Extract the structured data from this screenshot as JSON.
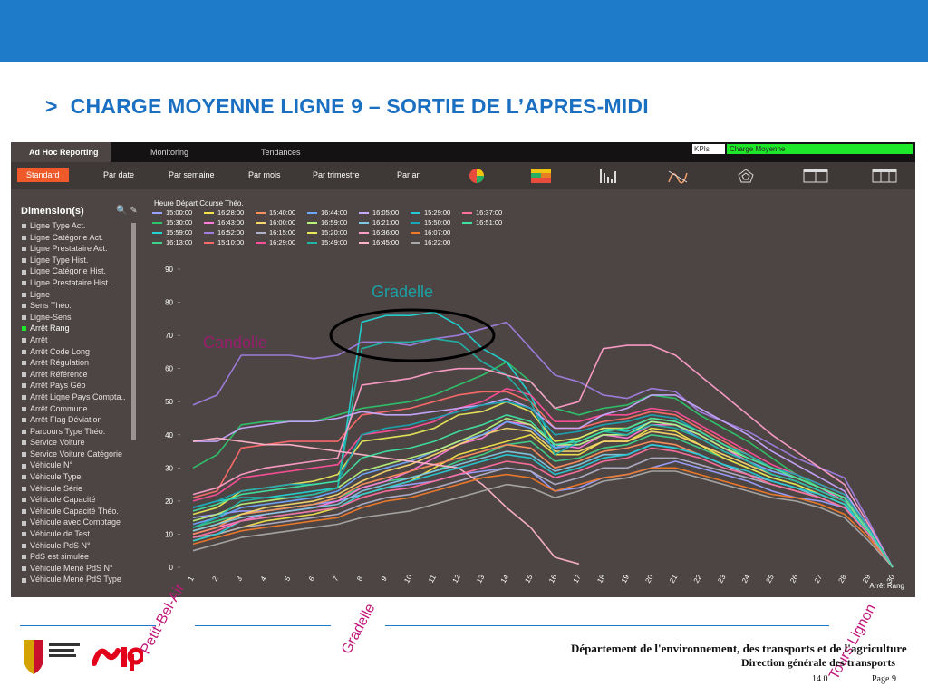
{
  "slide": {
    "title_arrow": ">",
    "title": "CHARGE MOYENNE LIGNE 9 – SORTIE DE L’APRES-MIDI",
    "footer_department": "Département de l'environnement, des transports et de l'agriculture",
    "footer_direction": "Direction générale des transports",
    "footer_date": "14.0",
    "footer_page": "Page 9",
    "colors": {
      "topbar": "#1e7bc9",
      "title": "#1a6fc1"
    }
  },
  "app": {
    "tabs": [
      "Ad Hoc Reporting",
      "Monitoring",
      "Tendances"
    ],
    "kpi_label": "KPIs",
    "kpi_value": "Charge Moyenne",
    "subtabs": [
      "Standard",
      "Par date",
      "Par semaine",
      "Par mois",
      "Par trimestre",
      "Par an"
    ],
    "tool_icons": [
      "pie-chart-icon",
      "heatmap-icon",
      "bar-chart-icon",
      "line-chart-icon",
      "radar-icon",
      "table-icon",
      "table-icon",
      "table-icon"
    ],
    "sidebar_title": "Dimension(s)",
    "sidebar_tools": "🔍 ✎",
    "dimensions": [
      "Ligne Type Act.",
      "Ligne Catégorie Act.",
      "Ligne Prestataire Act.",
      "Ligne Type Hist.",
      "Ligne Catégorie Hist.",
      "Ligne Prestataire Hist.",
      "Ligne",
      "Sens Théo.",
      "Ligne-Sens",
      "Arrêt Rang",
      "Arrêt",
      "Arrêt Code Long",
      "Arrêt Régulation",
      "Arrêt Référence",
      "Arrêt Pays Géo",
      "Arrêt Ligne Pays Compta..",
      "Arrêt Commune",
      "Arrêt Flag Déviation",
      "Parcours Type Théo.",
      "Service Voiture",
      "Service Voiture Catégorie",
      "Véhicule N°",
      "Véhicule Type",
      "Véhicule Série",
      "Véhicule Capacité",
      "Véhicule Capacité Théo.",
      "Véhicule avec Comptage",
      "Véhicule de Test",
      "Véhicule PdS N°",
      "PdS est simulée",
      "Véhicule Mené PdS N°",
      "Véhicule Mené PdS Type"
    ],
    "selected_dimension": "Arrêt Rang"
  },
  "chart_data": {
    "type": "line",
    "legend_title": "Heure Départ Course Théo.",
    "xlabel": "Arrêt Rang",
    "ylabel": "",
    "ylim": [
      0,
      90
    ],
    "yticks": [
      0,
      10,
      20,
      30,
      40,
      50,
      60,
      70,
      80,
      90
    ],
    "x": [
      1,
      2,
      3,
      4,
      5,
      6,
      7,
      8,
      9,
      10,
      11,
      12,
      13,
      14,
      15,
      16,
      17,
      18,
      19,
      20,
      21,
      22,
      23,
      24,
      25,
      26,
      27,
      28,
      29,
      30
    ],
    "grid": false,
    "legend_position": "top-left",
    "series": [
      {
        "name": "15:00:00",
        "color": "#9aa0ff",
        "values": [
          15,
          16,
          17,
          17,
          18,
          19,
          20,
          22,
          24,
          25,
          26,
          28,
          29,
          30,
          29,
          23,
          24,
          27,
          28,
          30,
          32,
          30,
          28,
          26,
          23,
          21,
          20,
          18,
          12,
          0
        ]
      },
      {
        "name": "15:30:00",
        "color": "#2ec46c",
        "values": [
          30,
          34,
          43,
          44,
          44,
          44,
          46,
          48,
          49,
          50,
          52,
          55,
          58,
          62,
          56,
          48,
          46,
          48,
          49,
          52,
          51,
          46,
          42,
          38,
          33,
          28,
          24,
          21,
          10,
          0
        ]
      },
      {
        "name": "15:59:00",
        "color": "#22d3d3",
        "values": [
          18,
          20,
          21,
          21,
          22,
          23,
          24,
          74,
          76,
          76,
          77,
          73,
          66,
          62,
          52,
          36,
          39,
          42,
          41,
          44,
          43,
          40,
          36,
          32,
          28,
          26,
          23,
          20,
          10,
          0
        ]
      },
      {
        "name": "16:13:00",
        "color": "#3fd18a",
        "values": [
          12,
          14,
          16,
          17,
          18,
          19,
          21,
          24,
          26,
          27,
          29,
          32,
          34,
          37,
          38,
          32,
          33,
          36,
          37,
          40,
          39,
          36,
          33,
          30,
          27,
          25,
          22,
          19,
          11,
          0
        ]
      },
      {
        "name": "16:28:00",
        "color": "#f1e24a",
        "values": [
          8,
          10,
          12,
          14,
          15,
          16,
          18,
          22,
          24,
          26,
          30,
          34,
          36,
          38,
          40,
          34,
          34,
          38,
          38,
          42,
          41,
          37,
          33,
          30,
          27,
          25,
          22,
          19,
          11,
          0
        ]
      },
      {
        "name": "16:43:00",
        "color": "#ff7ad9",
        "values": [
          10,
          12,
          14,
          16,
          17,
          18,
          20,
          24,
          26,
          29,
          33,
          37,
          39,
          44,
          43,
          37,
          36,
          40,
          39,
          43,
          43,
          40,
          36,
          32,
          29,
          27,
          24,
          20,
          11,
          0
        ]
      },
      {
        "name": "16:52:00",
        "color": "#a07ee0",
        "values": [
          49,
          52,
          64,
          64,
          64,
          63,
          64,
          68,
          68,
          67,
          69,
          70,
          72,
          74,
          66,
          58,
          56,
          52,
          51,
          54,
          53,
          47,
          44,
          41,
          37,
          33,
          30,
          27,
          14,
          0
        ]
      },
      {
        "name": "15:10:00",
        "color": "#ff6b6b",
        "values": [
          21,
          23,
          36,
          37,
          38,
          38,
          38,
          46,
          47,
          48,
          50,
          52,
          53,
          53,
          50,
          42,
          42,
          44,
          45,
          47,
          46,
          42,
          38,
          34,
          30,
          28,
          25,
          22,
          12,
          0
        ]
      },
      {
        "name": "15:40:00",
        "color": "#ff8f5e",
        "values": [
          10,
          12,
          16,
          17,
          18,
          19,
          21,
          25,
          27,
          29,
          31,
          33,
          35,
          37,
          36,
          30,
          32,
          35,
          36,
          38,
          37,
          34,
          31,
          28,
          25,
          23,
          21,
          18,
          10,
          0
        ]
      },
      {
        "name": "16:00:00",
        "color": "#f5d76e",
        "values": [
          11,
          13,
          16,
          18,
          19,
          20,
          22,
          26,
          29,
          31,
          34,
          37,
          40,
          42,
          41,
          35,
          35,
          38,
          38,
          41,
          40,
          37,
          34,
          31,
          28,
          26,
          23,
          20,
          11,
          0
        ]
      },
      {
        "name": "16:15:00",
        "color": "#b0b0c8",
        "values": [
          9,
          10,
          12,
          13,
          14,
          15,
          16,
          19,
          21,
          22,
          24,
          26,
          28,
          30,
          29,
          25,
          27,
          30,
          30,
          33,
          33,
          31,
          29,
          27,
          25,
          23,
          21,
          18,
          10,
          0
        ]
      },
      {
        "name": "16:29:00",
        "color": "#ff4f9a",
        "values": [
          20,
          22,
          27,
          28,
          29,
          30,
          31,
          40,
          41,
          42,
          44,
          48,
          50,
          54,
          52,
          44,
          44,
          46,
          46,
          48,
          47,
          43,
          39,
          35,
          31,
          28,
          25,
          22,
          12,
          0
        ]
      },
      {
        "name": "16:44:00",
        "color": "#6fa8ff",
        "values": [
          13,
          15,
          18,
          19,
          20,
          21,
          23,
          28,
          30,
          32,
          35,
          38,
          40,
          44,
          42,
          36,
          37,
          40,
          40,
          44,
          43,
          39,
          35,
          32,
          29,
          27,
          24,
          21,
          11,
          0
        ]
      },
      {
        "name": "16:59:00",
        "color": "#b9f27a",
        "values": [
          14,
          16,
          19,
          20,
          21,
          22,
          24,
          29,
          31,
          33,
          35,
          38,
          41,
          45,
          43,
          37,
          37,
          40,
          40,
          44,
          43,
          40,
          36,
          33,
          30,
          27,
          24,
          21,
          11,
          0
        ]
      },
      {
        "name": "15:20:00",
        "color": "#e8e85a",
        "values": [
          16,
          18,
          23,
          24,
          25,
          26,
          28,
          38,
          39,
          40,
          42,
          46,
          47,
          50,
          47,
          38,
          39,
          42,
          42,
          45,
          44,
          41,
          37,
          34,
          30,
          27,
          24,
          21,
          11,
          0
        ]
      },
      {
        "name": "15:49:00",
        "color": "#1fb5a8",
        "values": [
          12,
          15,
          20,
          21,
          21,
          22,
          24,
          66,
          68,
          68,
          69,
          68,
          62,
          58,
          50,
          34,
          38,
          41,
          40,
          43,
          42,
          39,
          35,
          32,
          28,
          26,
          23,
          20,
          10,
          0
        ]
      },
      {
        "name": "16:05:00",
        "color": "#c7a8ff",
        "values": [
          38,
          38,
          42,
          43,
          44,
          44,
          45,
          47,
          46,
          46,
          47,
          48,
          49,
          51,
          48,
          42,
          42,
          46,
          48,
          52,
          52,
          48,
          44,
          40,
          35,
          31,
          27,
          23,
          12,
          0
        ]
      },
      {
        "name": "16:21:00",
        "color": "#7ec8e3",
        "values": [
          11,
          13,
          15,
          16,
          17,
          18,
          19,
          23,
          25,
          27,
          29,
          31,
          33,
          35,
          34,
          29,
          31,
          34,
          34,
          37,
          36,
          34,
          31,
          28,
          26,
          24,
          21,
          18,
          10,
          0
        ]
      },
      {
        "name": "16:36:00",
        "color": "#ff9ec9",
        "values": [
          22,
          24,
          28,
          30,
          31,
          32,
          33,
          55,
          56,
          57,
          59,
          60,
          60,
          58,
          56,
          48,
          50,
          66,
          67,
          67,
          64,
          58,
          52,
          46,
          40,
          35,
          30,
          25,
          13,
          0
        ]
      },
      {
        "name": "16:45:00",
        "color": "#ffb3c8",
        "values": [
          38,
          39,
          38,
          37,
          37,
          36,
          35,
          34,
          33,
          32,
          31,
          30,
          25,
          18,
          12,
          3,
          1,
          null,
          null,
          null,
          null,
          null,
          null,
          null,
          null,
          null,
          null,
          null,
          null,
          null
        ]
      },
      {
        "name": "15:29:00",
        "color": "#25c9d6",
        "values": [
          8,
          10,
          14,
          15,
          16,
          17,
          18,
          22,
          24,
          26,
          28,
          30,
          32,
          34,
          33,
          28,
          30,
          33,
          34,
          37,
          36,
          34,
          31,
          29,
          26,
          24,
          22,
          19,
          10,
          0
        ]
      },
      {
        "name": "15:50:00",
        "color": "#19a6b5",
        "values": [
          18,
          20,
          23,
          24,
          25,
          25,
          26,
          40,
          42,
          43,
          45,
          47,
          49,
          50,
          48,
          40,
          41,
          43,
          44,
          46,
          45,
          41,
          37,
          34,
          30,
          28,
          25,
          22,
          12,
          0
        ]
      },
      {
        "name": "16:07:00",
        "color": "#f07a2a",
        "values": [
          7,
          9,
          11,
          12,
          13,
          14,
          15,
          18,
          20,
          21,
          23,
          25,
          27,
          28,
          27,
          23,
          25,
          27,
          28,
          30,
          30,
          28,
          26,
          24,
          22,
          21,
          19,
          16,
          9,
          0
        ]
      },
      {
        "name": "16:22:00",
        "color": "#a9a9a9",
        "values": [
          5,
          7,
          9,
          10,
          11,
          12,
          13,
          15,
          16,
          17,
          19,
          21,
          23,
          25,
          24,
          21,
          23,
          26,
          27,
          29,
          29,
          27,
          25,
          23,
          21,
          20,
          18,
          15,
          8,
          0
        ]
      },
      {
        "name": "16:37:00",
        "color": "#ff6fa0",
        "values": [
          9,
          11,
          14,
          15,
          16,
          17,
          18,
          21,
          23,
          24,
          26,
          28,
          30,
          32,
          31,
          27,
          29,
          32,
          33,
          36,
          35,
          33,
          30,
          28,
          25,
          23,
          21,
          18,
          10,
          0
        ]
      },
      {
        "name": "16:51:00",
        "color": "#40e0a0",
        "values": [
          17,
          19,
          22,
          23,
          24,
          25,
          26,
          33,
          35,
          36,
          38,
          41,
          43,
          46,
          44,
          37,
          38,
          41,
          42,
          45,
          44,
          41,
          37,
          33,
          30,
          27,
          24,
          21,
          11,
          0
        ]
      }
    ],
    "annotations": {
      "candolle": "Candolle",
      "gradelle_top": "Gradelle",
      "petit_bel_air": "Petit-Bel-Air",
      "gradelle_axis": "Gradelle",
      "tours_lignon": "Tours Lignon"
    }
  }
}
